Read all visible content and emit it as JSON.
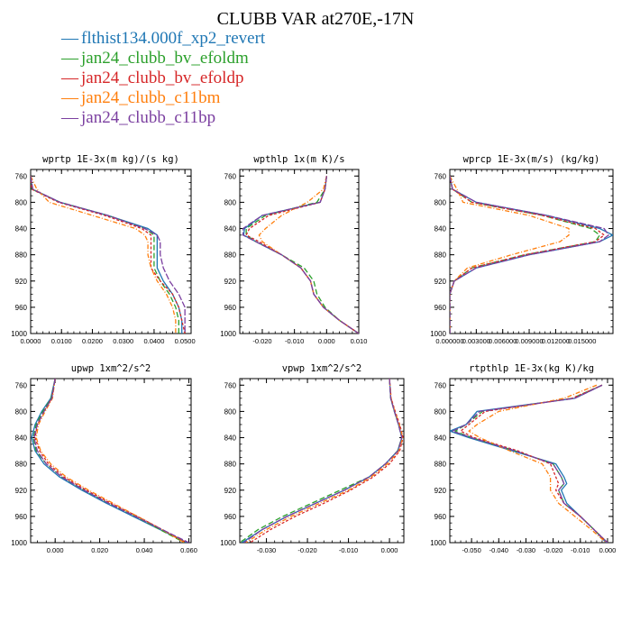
{
  "figure": {
    "title": "CLUBB VAR at270E,-17N"
  },
  "legend": [
    {
      "name": "flthist134.000f_xp2_revert",
      "color": "#1f77b4",
      "marker": "—"
    },
    {
      "name": "jan24_clubb_bv_efoldm",
      "color": "#2ca02c",
      "marker": "—"
    },
    {
      "name": "jan24_clubb_bv_efoldp",
      "color": "#d62728",
      "marker": "—"
    },
    {
      "name": "jan24_clubb_c11bm",
      "color": "#ff7f0e",
      "marker": "—"
    },
    {
      "name": "jan24_clubb_c11bp",
      "color": "#7b3fa0",
      "marker": "—"
    }
  ],
  "colors": {
    "s0": "#1f77b4",
    "s1": "#2ca02c",
    "s2": "#d62728",
    "s3": "#ff7f0e",
    "s4": "#7b3fa0"
  },
  "chart_data": [
    {
      "type": "line",
      "title": "wprtp  1E-3x(m kg)/(s kg)",
      "xlim": [
        0.0,
        0.052
      ],
      "ylim": [
        1000,
        750
      ],
      "xticks": [
        0.0,
        0.01,
        0.02,
        0.03,
        0.04,
        0.05
      ],
      "xtick_labels": [
        "0.0000",
        "0.0100",
        "0.0200",
        "0.0300",
        "0.0400",
        "0.0500"
      ],
      "yticks": [
        760,
        800,
        840,
        880,
        920,
        960,
        1000
      ],
      "y": [
        760,
        780,
        800,
        820,
        840,
        850,
        860,
        880,
        900,
        920,
        940,
        960,
        980,
        1000
      ],
      "series": [
        {
          "values": [
            0.0,
            0.0005,
            0.0095,
            0.025,
            0.038,
            0.041,
            0.041,
            0.041,
            0.041,
            0.043,
            0.046,
            0.048,
            0.049,
            0.049
          ]
        },
        {
          "values": [
            0.0,
            0.0004,
            0.0095,
            0.025,
            0.037,
            0.04,
            0.04,
            0.04,
            0.04,
            0.042,
            0.045,
            0.047,
            0.048,
            0.048
          ]
        },
        {
          "values": [
            0.0,
            0.0003,
            0.009,
            0.024,
            0.036,
            0.039,
            0.039,
            0.039,
            0.039,
            0.042,
            0.046,
            0.048,
            0.049,
            0.05
          ]
        },
        {
          "values": [
            0.0,
            0.002,
            0.006,
            0.02,
            0.034,
            0.037,
            0.038,
            0.038,
            0.039,
            0.041,
            0.044,
            0.046,
            0.047,
            0.047
          ]
        },
        {
          "values": [
            0.0,
            0.0007,
            0.0095,
            0.025,
            0.037,
            0.041,
            0.042,
            0.042,
            0.043,
            0.045,
            0.048,
            0.05,
            0.05,
            0.05
          ]
        }
      ]
    },
    {
      "type": "line",
      "title": "wpthlp  1x(m K)/s",
      "xlim": [
        -0.027,
        0.01
      ],
      "ylim": [
        1000,
        750
      ],
      "xticks": [
        -0.02,
        -0.01,
        0.0,
        0.01
      ],
      "xtick_labels": [
        "-0.020",
        "-0.010",
        "0.000",
        "0.010"
      ],
      "yticks": [
        760,
        800,
        840,
        880,
        920,
        960,
        1000
      ],
      "y": [
        760,
        780,
        800,
        820,
        840,
        850,
        860,
        880,
        900,
        920,
        940,
        960,
        980,
        1000
      ],
      "series": [
        {
          "values": [
            0.0,
            -0.0005,
            -0.002,
            -0.02,
            -0.0255,
            -0.0258,
            -0.022,
            -0.014,
            -0.008,
            -0.005,
            -0.004,
            -0.001,
            0.004,
            0.01
          ]
        },
        {
          "values": [
            0.0,
            -0.0005,
            -0.003,
            -0.019,
            -0.025,
            -0.025,
            -0.022,
            -0.014,
            -0.007,
            -0.004,
            -0.003,
            -0.0005,
            0.004,
            0.01
          ]
        },
        {
          "values": [
            0.0,
            -0.0005,
            -0.002,
            -0.018,
            -0.024,
            -0.025,
            -0.021,
            -0.014,
            -0.008,
            -0.005,
            -0.004,
            -0.001,
            0.004,
            0.01
          ]
        },
        {
          "values": [
            0.0,
            -0.001,
            -0.006,
            -0.014,
            -0.019,
            -0.021,
            -0.02,
            -0.014,
            -0.008,
            -0.005,
            -0.004,
            -0.001,
            0.004,
            0.01
          ]
        },
        {
          "values": [
            0.0,
            -0.0005,
            -0.002,
            -0.02,
            -0.026,
            -0.026,
            -0.022,
            -0.014,
            -0.008,
            -0.005,
            -0.004,
            -0.001,
            0.004,
            0.01
          ]
        }
      ]
    },
    {
      "type": "line",
      "title": "wprcp  1E-3x(m/s) (kg/kg)",
      "xlim": [
        0.0,
        0.0185
      ],
      "ylim": [
        1000,
        750
      ],
      "xticks": [
        0.0,
        0.003,
        0.006,
        0.009,
        0.012,
        0.015
      ],
      "xtick_labels": [
        "0.000000",
        "0.003000",
        "0.006000",
        "0.009000",
        "0.012000",
        "0.015000"
      ],
      "yticks": [
        760,
        800,
        840,
        880,
        920,
        960,
        1000
      ],
      "y": [
        760,
        780,
        800,
        820,
        840,
        850,
        860,
        880,
        900,
        920,
        940,
        960,
        980,
        1000
      ],
      "series": [
        {
          "values": [
            0.0,
            0.0003,
            0.003,
            0.011,
            0.017,
            0.0185,
            0.017,
            0.009,
            0.003,
            0.0005,
            0.0,
            0.0,
            0.0,
            0.0
          ]
        },
        {
          "values": [
            0.0,
            0.0003,
            0.0025,
            0.0105,
            0.016,
            0.017,
            0.0165,
            0.0085,
            0.0025,
            0.0005,
            0.0,
            0.0,
            0.0,
            0.0
          ]
        },
        {
          "values": [
            0.0,
            0.0003,
            0.0025,
            0.0105,
            0.0165,
            0.0175,
            0.0165,
            0.0085,
            0.0025,
            0.0005,
            0.0,
            0.0,
            0.0,
            0.0
          ]
        },
        {
          "values": [
            0.0,
            0.0008,
            0.0015,
            0.009,
            0.0135,
            0.0135,
            0.0125,
            0.007,
            0.002,
            0.0005,
            0.0,
            0.0,
            0.0,
            0.0
          ]
        },
        {
          "values": [
            0.0,
            0.0003,
            0.003,
            0.011,
            0.0175,
            0.018,
            0.017,
            0.009,
            0.003,
            0.0005,
            0.0,
            0.0,
            0.0,
            0.0
          ]
        }
      ]
    },
    {
      "type": "line",
      "title": "upwp  1xm^2/s^2",
      "xlim": [
        -0.011,
        0.061
      ],
      "ylim": [
        1000,
        750
      ],
      "xticks": [
        0.0,
        0.02,
        0.04,
        0.06
      ],
      "xtick_labels": [
        "0.000",
        "0.020",
        "0.040",
        "0.060"
      ],
      "yticks": [
        760,
        800,
        840,
        880,
        920,
        960,
        1000
      ],
      "y": [
        750,
        780,
        800,
        820,
        840,
        860,
        880,
        900,
        920,
        940,
        960,
        980,
        1000
      ],
      "series": [
        {
          "values": [
            0.0,
            -0.002,
            -0.006,
            -0.009,
            -0.0105,
            -0.009,
            -0.005,
            0.002,
            0.012,
            0.023,
            0.035,
            0.047,
            0.059
          ]
        },
        {
          "values": [
            0.0,
            -0.0018,
            -0.0055,
            -0.0085,
            -0.0098,
            -0.0085,
            -0.004,
            0.003,
            0.013,
            0.024,
            0.036,
            0.047,
            0.058
          ]
        },
        {
          "values": [
            0.0,
            -0.0015,
            -0.005,
            -0.008,
            -0.009,
            -0.007,
            -0.003,
            0.004,
            0.014,
            0.025,
            0.037,
            0.048,
            0.059
          ]
        },
        {
          "values": [
            0.0,
            -0.0012,
            -0.0045,
            -0.0075,
            -0.0085,
            -0.0065,
            -0.002,
            0.005,
            0.015,
            0.026,
            0.037,
            0.048,
            0.058
          ]
        },
        {
          "values": [
            0.0,
            -0.0015,
            -0.005,
            -0.008,
            -0.0095,
            -0.008,
            -0.004,
            0.003,
            0.013,
            0.024,
            0.036,
            0.048,
            0.06
          ]
        }
      ]
    },
    {
      "type": "line",
      "title": "vpwp  1xm^2/s^2",
      "xlim": [
        -0.0365,
        0.0035
      ],
      "ylim": [
        1000,
        750
      ],
      "xticks": [
        -0.03,
        -0.02,
        -0.01,
        0.0
      ],
      "xtick_labels": [
        "-0.030",
        "-0.020",
        "-0.010",
        "0.000"
      ],
      "yticks": [
        760,
        800,
        840,
        880,
        920,
        960,
        1000
      ],
      "y": [
        750,
        780,
        800,
        820,
        840,
        860,
        880,
        900,
        920,
        940,
        960,
        980,
        1000
      ],
      "series": [
        {
          "values": [
            0.0,
            0.0003,
            0.0012,
            0.0022,
            0.003,
            0.002,
            -0.001,
            -0.005,
            -0.011,
            -0.018,
            -0.025,
            -0.031,
            -0.036
          ]
        },
        {
          "values": [
            0.0,
            0.0003,
            0.0012,
            0.0022,
            0.003,
            0.002,
            -0.001,
            -0.005,
            -0.012,
            -0.019,
            -0.026,
            -0.032,
            -0.0365
          ]
        },
        {
          "values": [
            0.0,
            0.0004,
            0.0014,
            0.0025,
            0.0033,
            0.0025,
            0.0,
            -0.004,
            -0.0095,
            -0.016,
            -0.023,
            -0.029,
            -0.034
          ]
        },
        {
          "values": [
            0.0,
            0.0004,
            0.0013,
            0.0024,
            0.0032,
            0.0023,
            -0.0005,
            -0.0045,
            -0.01,
            -0.017,
            -0.024,
            -0.03,
            -0.035
          ]
        },
        {
          "values": [
            0.0,
            0.0003,
            0.0012,
            0.0022,
            0.003,
            0.0021,
            -0.001,
            -0.005,
            -0.011,
            -0.018,
            -0.025,
            -0.031,
            -0.0355
          ]
        }
      ]
    },
    {
      "type": "line",
      "title": "rtpthlp  1E-3x(kg K)/kg",
      "xlim": [
        -0.058,
        0.002
      ],
      "ylim": [
        1000,
        750
      ],
      "xticks": [
        -0.05,
        -0.04,
        -0.03,
        -0.02,
        -0.01,
        0.0
      ],
      "xtick_labels": [
        "-0.050",
        "-0.040",
        "-0.030",
        "-0.020",
        "-0.010",
        "0.000"
      ],
      "yticks": [
        760,
        800,
        840,
        880,
        920,
        960,
        1000
      ],
      "y": [
        760,
        780,
        800,
        820,
        830,
        840,
        860,
        880,
        900,
        910,
        920,
        940,
        960,
        980,
        1000
      ],
      "series": [
        {
          "values": [
            -0.002,
            -0.012,
            -0.048,
            -0.052,
            -0.058,
            -0.051,
            -0.035,
            -0.019,
            -0.016,
            -0.015,
            -0.017,
            -0.015,
            -0.01,
            -0.005,
            -0.0005
          ]
        },
        {
          "values": [
            -0.002,
            -0.013,
            -0.046,
            -0.052,
            -0.056,
            -0.05,
            -0.034,
            -0.02,
            -0.017,
            -0.016,
            -0.018,
            -0.016,
            -0.01,
            -0.005,
            0.0
          ]
        },
        {
          "values": [
            -0.002,
            -0.013,
            -0.045,
            -0.051,
            -0.054,
            -0.049,
            -0.033,
            -0.021,
            -0.019,
            -0.018,
            -0.019,
            -0.016,
            -0.01,
            -0.005,
            0.0
          ]
        },
        {
          "values": [
            -0.004,
            -0.016,
            -0.04,
            -0.048,
            -0.051,
            -0.047,
            -0.036,
            -0.024,
            -0.021,
            -0.021,
            -0.021,
            -0.018,
            -0.012,
            -0.006,
            -0.0005
          ]
        },
        {
          "values": [
            -0.002,
            -0.012,
            -0.047,
            -0.052,
            -0.057,
            -0.05,
            -0.034,
            -0.02,
            -0.017,
            -0.016,
            -0.018,
            -0.016,
            -0.01,
            -0.005,
            0.0
          ]
        }
      ]
    }
  ]
}
